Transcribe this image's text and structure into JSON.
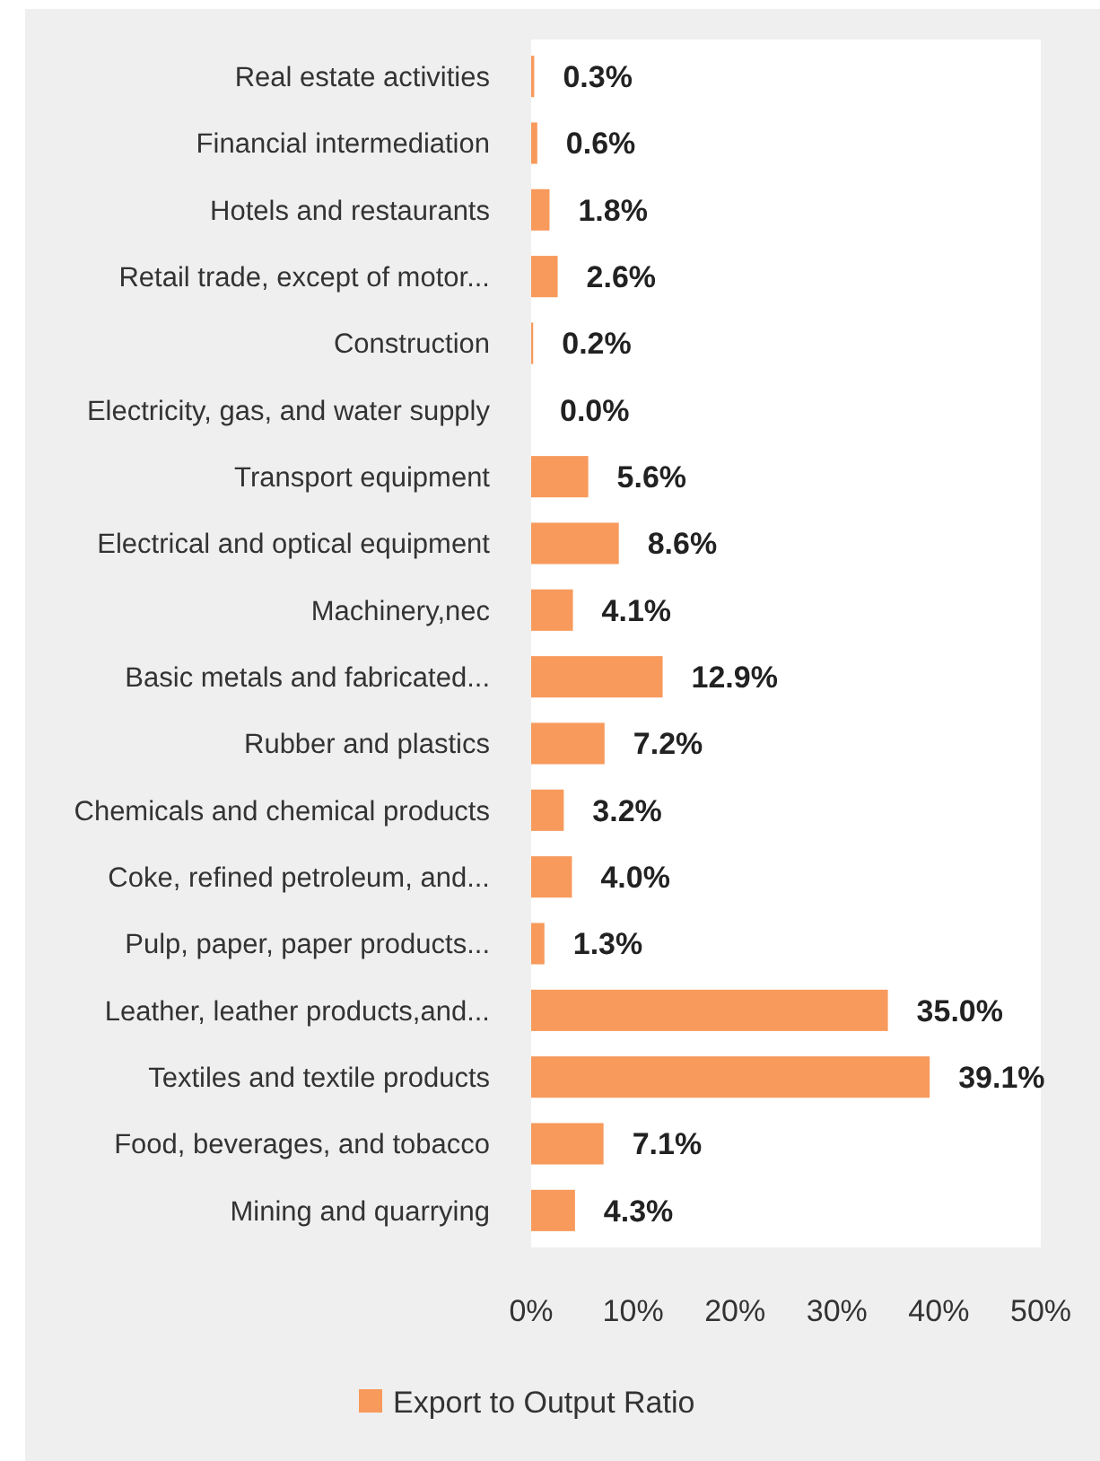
{
  "chart_data": {
    "type": "bar",
    "orientation": "horizontal",
    "categories": [
      "Real estate activities",
      "Financial intermediation",
      "Hotels and restaurants",
      "Retail trade, except of motor...",
      "Construction",
      "Electricity, gas, and water supply",
      "Transport equipment",
      "Electrical and optical equipment",
      "Machinery,nec",
      "Basic metals and fabricated...",
      "Rubber and plastics",
      "Chemicals and chemical products",
      "Coke, refined petroleum, and...",
      "Pulp, paper, paper products...",
      "Leather, leather products,and...",
      "Textiles and textile products",
      "Food, beverages, and tobacco",
      "Mining and quarrying"
    ],
    "series": [
      {
        "name": "Export to Output Ratio",
        "color": "#f79a5c",
        "values": [
          0.3,
          0.6,
          1.8,
          2.6,
          0.2,
          0.0,
          5.6,
          8.6,
          4.1,
          12.9,
          7.2,
          3.2,
          4.0,
          1.3,
          35.0,
          39.1,
          7.1,
          4.3
        ],
        "value_labels": [
          "0.3%",
          "0.6%",
          "1.8%",
          "2.6%",
          "0.2%",
          "0.0%",
          "5.6%",
          "8.6%",
          "4.1%",
          "12.9%",
          "7.2%",
          "3.2%",
          "4.0%",
          "1.3%",
          "35.0%",
          "39.1%",
          "7.1%",
          "4.3%"
        ]
      }
    ],
    "xlim": [
      0,
      50
    ],
    "xticks": [
      {
        "value": 0,
        "label": "0%"
      },
      {
        "value": 10,
        "label": "10%"
      },
      {
        "value": 20,
        "label": "20%"
      },
      {
        "value": 30,
        "label": "30%"
      },
      {
        "value": 40,
        "label": "40%"
      },
      {
        "value": 50,
        "label": "50%"
      }
    ],
    "grid": false,
    "legend": "bottom"
  }
}
